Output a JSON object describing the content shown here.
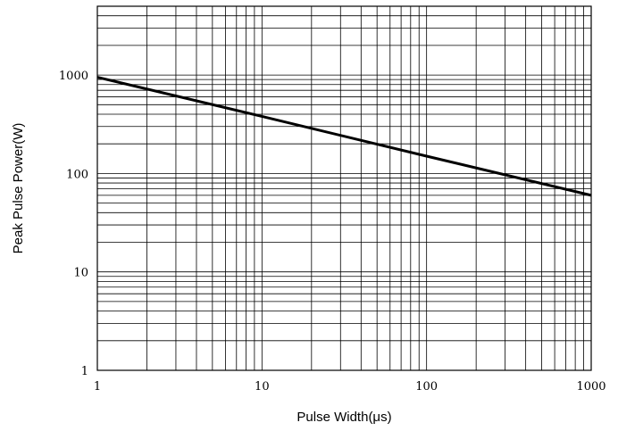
{
  "chart_data": {
    "type": "line",
    "title": "",
    "xlabel": "Pulse Width(μs)",
    "ylabel": "Peak Pulse Power(W)",
    "x_scale": "log",
    "y_scale": "log",
    "xlim": [
      1,
      1000
    ],
    "ylim": [
      1,
      5000
    ],
    "x_ticks": [
      1,
      10,
      100,
      1000
    ],
    "x_tick_labels": [
      "1",
      "10",
      "100",
      "1000"
    ],
    "y_ticks": [
      1,
      10,
      100,
      1000
    ],
    "y_tick_labels": [
      "1",
      "10",
      "100",
      "1000"
    ],
    "grid": true,
    "line_color": "#000000",
    "series": [
      {
        "x": [
          1,
          10,
          100,
          1000
        ],
        "y": [
          950,
          380,
          150,
          60
        ]
      }
    ]
  }
}
